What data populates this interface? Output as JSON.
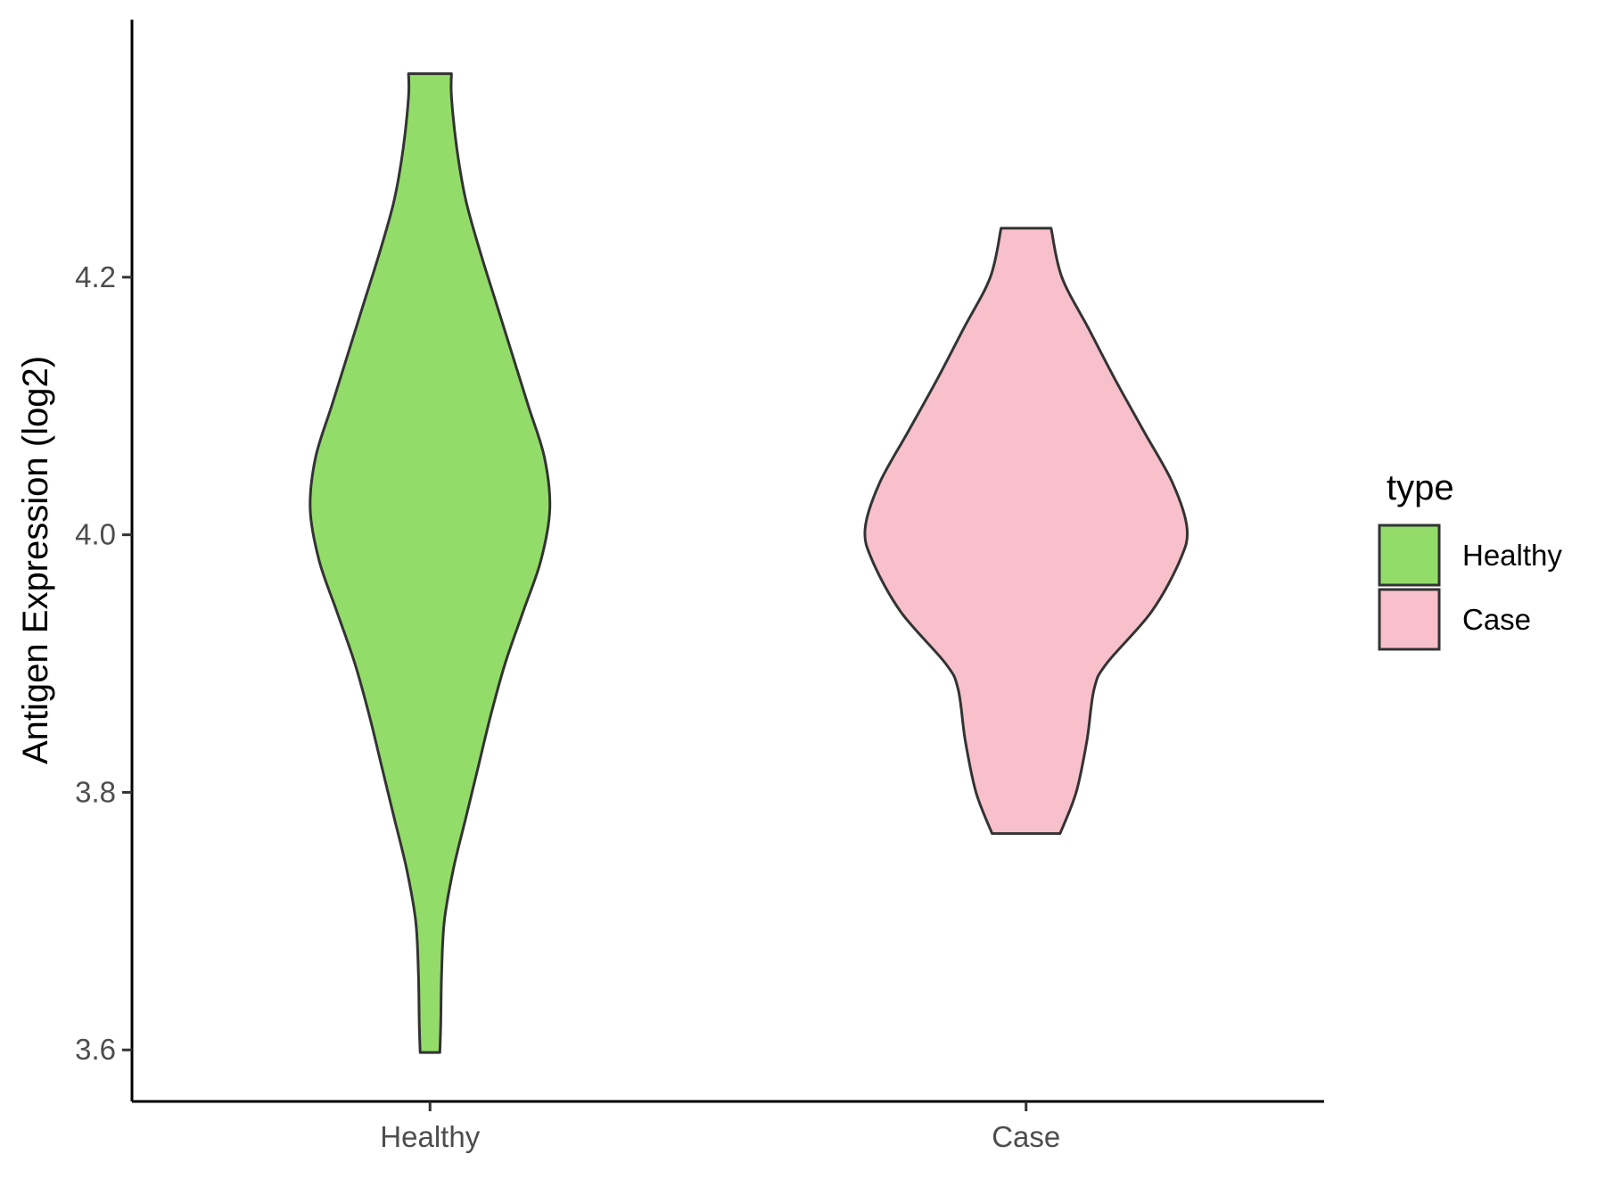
{
  "chart_data": {
    "type": "violin",
    "title": "",
    "xlabel": "",
    "ylabel": "Antigen Expression (log2)",
    "categories": [
      "Healthy",
      "Case"
    ],
    "ylim": [
      3.56,
      4.4
    ],
    "yticks": [
      3.6,
      3.8,
      4.0,
      4.2
    ],
    "ytick_labels": [
      "3.6",
      "3.8",
      "4.0",
      "4.2"
    ],
    "grid": false,
    "series": [
      {
        "name": "Healthy",
        "color": "#93DC6A",
        "min": 3.598,
        "max": 4.358,
        "mode": 4.022,
        "max_half_width": 0.67,
        "density": [
          [
            3.598,
            0.055
          ],
          [
            3.62,
            0.06
          ],
          [
            3.66,
            0.065
          ],
          [
            3.7,
            0.08
          ],
          [
            3.74,
            0.13
          ],
          [
            3.78,
            0.2
          ],
          [
            3.82,
            0.27
          ],
          [
            3.86,
            0.34
          ],
          [
            3.9,
            0.42
          ],
          [
            3.94,
            0.52
          ],
          [
            3.98,
            0.62
          ],
          [
            4.02,
            0.67
          ],
          [
            4.06,
            0.64
          ],
          [
            4.1,
            0.55
          ],
          [
            4.14,
            0.46
          ],
          [
            4.18,
            0.37
          ],
          [
            4.22,
            0.28
          ],
          [
            4.26,
            0.2
          ],
          [
            4.3,
            0.15
          ],
          [
            4.34,
            0.12
          ],
          [
            4.358,
            0.12
          ]
        ]
      },
      {
        "name": "Case",
        "color": "#F8C0CB",
        "min": 3.768,
        "max": 4.238,
        "mode": 4.005,
        "max_half_width": 0.9,
        "density": [
          [
            3.768,
            0.19
          ],
          [
            3.8,
            0.28
          ],
          [
            3.84,
            0.34
          ],
          [
            3.88,
            0.38
          ],
          [
            3.9,
            0.45
          ],
          [
            3.94,
            0.7
          ],
          [
            3.98,
            0.86
          ],
          [
            4.005,
            0.9
          ],
          [
            4.04,
            0.82
          ],
          [
            4.08,
            0.66
          ],
          [
            4.12,
            0.5
          ],
          [
            4.16,
            0.35
          ],
          [
            4.2,
            0.2
          ],
          [
            4.238,
            0.14
          ]
        ]
      }
    ],
    "legend": {
      "title": "type",
      "position": "right",
      "entries": [
        {
          "label": "Healthy",
          "color": "#93DC6A"
        },
        {
          "label": "Case",
          "color": "#F8C0CB"
        }
      ]
    }
  }
}
